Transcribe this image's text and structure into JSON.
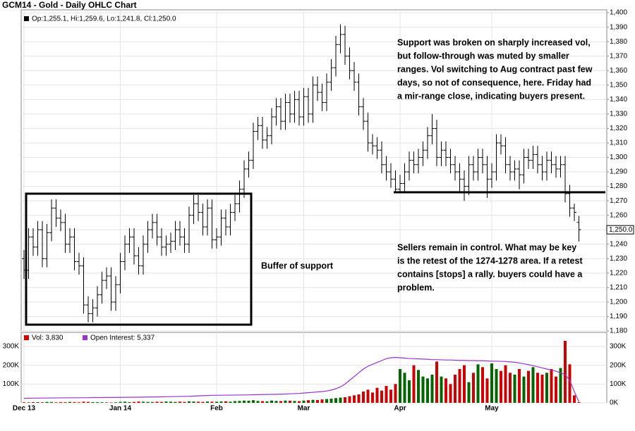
{
  "chart_data": {
    "type": "ohlc",
    "title": "GCM14 - Gold - Daily OHLC Chart",
    "price_legend": "Op:1,255.1, Hi:1,259.6, Lo:1,241.8, Cl:1,250.0",
    "volume_legend": "Vol: 3,830",
    "oi_legend": "Open Interest: 5,337",
    "last_price": {
      "value": 1250,
      "label": "1,250.0"
    },
    "annotations": [
      {
        "lines": [
          "Support was broken on sharply increased vol,",
          "but follow-through was muted by smaller",
          "ranges.  Vol switching to Aug contract past few",
          "days, so not of consequence, here.  Friday had",
          "a mir-range close, indicating buyers present."
        ]
      },
      {
        "lines": [
          "Buffer of support"
        ]
      },
      {
        "lines": [
          "Sellers remain in control.  What may be key",
          "is the retest of the 1274-1278 area.  If a retest",
          "contains [stops] a rally. buyers could have a",
          "problem."
        ]
      }
    ],
    "categories": [
      "Dec 13",
      null,
      null,
      null,
      null,
      null,
      null,
      null,
      null,
      null,
      null,
      null,
      null,
      null,
      null,
      null,
      null,
      null,
      null,
      null,
      null,
      "Jan 14",
      null,
      null,
      null,
      null,
      null,
      null,
      null,
      null,
      null,
      null,
      null,
      null,
      null,
      null,
      null,
      null,
      null,
      null,
      null,
      null,
      "Feb",
      null,
      null,
      null,
      null,
      null,
      null,
      null,
      null,
      null,
      null,
      null,
      null,
      null,
      null,
      null,
      null,
      null,
      null,
      "Mar",
      null,
      null,
      null,
      null,
      null,
      null,
      null,
      null,
      null,
      null,
      null,
      null,
      null,
      null,
      null,
      null,
      null,
      null,
      null,
      null,
      "Apr",
      null,
      null,
      null,
      null,
      null,
      null,
      null,
      null,
      null,
      null,
      null,
      null,
      null,
      null,
      null,
      null,
      null,
      null,
      null,
      "May",
      null,
      null,
      null,
      null,
      null,
      null,
      null,
      null,
      null,
      null,
      null,
      null,
      null,
      null,
      null,
      null,
      null,
      null,
      null
    ],
    "open": [
      1230,
      1222,
      1245,
      1238,
      1250,
      1230,
      1248,
      1265,
      1258,
      1255,
      1240,
      1245,
      1228,
      1225,
      1198,
      1192,
      1196,
      1205,
      1215,
      1218,
      1200,
      1212,
      1228,
      1240,
      1245,
      1232,
      1225,
      1240,
      1250,
      1255,
      1245,
      1238,
      1240,
      1242,
      1250,
      1245,
      1240,
      1260,
      1268,
      1262,
      1252,
      1265,
      1243,
      1245,
      1258,
      1252,
      1262,
      1268,
      1278,
      1292,
      1298,
      1318,
      1322,
      1312,
      1315,
      1328,
      1335,
      1325,
      1338,
      1330,
      1340,
      1328,
      1342,
      1330,
      1350,
      1345,
      1338,
      1352,
      1362,
      1378,
      1385,
      1370,
      1360,
      1352,
      1335,
      1325,
      1310,
      1308,
      1305,
      1295,
      1290,
      1285,
      1278,
      1282,
      1290,
      1298,
      1295,
      1300,
      1305,
      1315,
      1320,
      1300,
      1305,
      1300,
      1295,
      1290,
      1285,
      1280,
      1295,
      1290,
      1300,
      1295,
      1285,
      1290,
      1310,
      1308,
      1295,
      1290,
      1292,
      1288,
      1300,
      1298,
      1302,
      1295,
      1290,
      1298,
      1295,
      1292,
      1295,
      1275,
      1265,
      1255.1
    ],
    "high": [
      1236,
      1251,
      1251,
      1256,
      1256,
      1254,
      1271,
      1271,
      1264,
      1261,
      1251,
      1251,
      1234,
      1231,
      1204,
      1202,
      1211,
      1221,
      1224,
      1224,
      1218,
      1234,
      1246,
      1251,
      1251,
      1238,
      1246,
      1256,
      1261,
      1261,
      1251,
      1246,
      1248,
      1256,
      1256,
      1251,
      1266,
      1274,
      1274,
      1268,
      1271,
      1271,
      1251,
      1264,
      1264,
      1268,
      1274,
      1284,
      1298,
      1304,
      1324,
      1328,
      1328,
      1321,
      1334,
      1341,
      1341,
      1344,
      1344,
      1346,
      1346,
      1348,
      1348,
      1356,
      1356,
      1351,
      1358,
      1368,
      1384,
      1392,
      1391,
      1376,
      1366,
      1358,
      1341,
      1331,
      1316,
      1314,
      1311,
      1301,
      1296,
      1291,
      1288,
      1296,
      1304,
      1304,
      1306,
      1311,
      1321,
      1330,
      1326,
      1311,
      1311,
      1306,
      1301,
      1296,
      1291,
      1301,
      1301,
      1306,
      1306,
      1301,
      1296,
      1316,
      1316,
      1314,
      1301,
      1298,
      1298,
      1306,
      1306,
      1308,
      1308,
      1301,
      1304,
      1304,
      1301,
      1301,
      1301,
      1281,
      1268,
      1259.6
    ],
    "low": [
      1216,
      1216,
      1232,
      1232,
      1224,
      1224,
      1242,
      1252,
      1249,
      1234,
      1234,
      1222,
      1219,
      1192,
      1186,
      1186,
      1190,
      1199,
      1209,
      1194,
      1194,
      1206,
      1222,
      1234,
      1226,
      1219,
      1219,
      1234,
      1244,
      1239,
      1232,
      1232,
      1234,
      1236,
      1239,
      1234,
      1234,
      1254,
      1256,
      1246,
      1246,
      1237,
      1237,
      1239,
      1246,
      1246,
      1256,
      1262,
      1272,
      1286,
      1292,
      1312,
      1306,
      1306,
      1309,
      1322,
      1319,
      1319,
      1324,
      1324,
      1322,
      1322,
      1324,
      1324,
      1339,
      1332,
      1332,
      1346,
      1356,
      1372,
      1364,
      1354,
      1346,
      1329,
      1319,
      1304,
      1302,
      1299,
      1289,
      1284,
      1279,
      1276,
      1276,
      1276,
      1284,
      1289,
      1289,
      1294,
      1299,
      1309,
      1294,
      1294,
      1294,
      1289,
      1284,
      1276,
      1270,
      1274,
      1284,
      1284,
      1289,
      1272,
      1279,
      1284,
      1302,
      1289,
      1284,
      1284,
      1278,
      1282,
      1292,
      1292,
      1289,
      1284,
      1284,
      1289,
      1286,
      1286,
      1269,
      1259,
      1256,
      1241.8
    ],
    "close": [
      1222,
      1245,
      1238,
      1250,
      1230,
      1248,
      1265,
      1258,
      1255,
      1240,
      1245,
      1228,
      1225,
      1198,
      1192,
      1196,
      1205,
      1215,
      1218,
      1200,
      1212,
      1228,
      1240,
      1245,
      1232,
      1225,
      1240,
      1250,
      1255,
      1245,
      1238,
      1240,
      1242,
      1250,
      1245,
      1240,
      1260,
      1268,
      1262,
      1252,
      1265,
      1243,
      1245,
      1258,
      1252,
      1262,
      1268,
      1278,
      1292,
      1298,
      1318,
      1322,
      1312,
      1315,
      1328,
      1335,
      1325,
      1338,
      1330,
      1340,
      1328,
      1342,
      1330,
      1350,
      1345,
      1338,
      1352,
      1362,
      1378,
      1385,
      1370,
      1360,
      1352,
      1335,
      1325,
      1310,
      1308,
      1305,
      1295,
      1290,
      1285,
      1278,
      1282,
      1290,
      1298,
      1295,
      1300,
      1305,
      1315,
      1320,
      1300,
      1305,
      1300,
      1295,
      1290,
      1285,
      1280,
      1295,
      1290,
      1300,
      1295,
      1285,
      1290,
      1310,
      1308,
      1295,
      1290,
      1292,
      1288,
      1300,
      1298,
      1302,
      1295,
      1290,
      1298,
      1295,
      1292,
      1295,
      1275,
      1265,
      1262,
      1250
    ],
    "volume": [
      3000,
      2500,
      3500,
      4000,
      3000,
      5000,
      4500,
      3000,
      4000,
      3500,
      5000,
      4000,
      3000,
      6000,
      5000,
      4000,
      3500,
      3000,
      2500,
      2000,
      3000,
      5000,
      6000,
      4000,
      5000,
      7000,
      6000,
      5000,
      4500,
      6000,
      5000,
      7000,
      6000,
      5000,
      6500,
      5000,
      8000,
      7000,
      6000,
      5000,
      7000,
      6000,
      6000,
      7000,
      8000,
      6000,
      9000,
      10000,
      12000,
      11000,
      14000,
      10000,
      9000,
      8000,
      12000,
      10000,
      9000,
      12000,
      11000,
      10000,
      9000,
      12000,
      14000,
      16000,
      15000,
      18000,
      20000,
      22000,
      25000,
      28000,
      30000,
      35000,
      40000,
      45000,
      60000,
      70000,
      55000,
      80000,
      65000,
      90000,
      70000,
      100000,
      180000,
      160000,
      120000,
      200000,
      175000,
      140000,
      130000,
      150000,
      220000,
      140000,
      130000,
      100000,
      150000,
      180000,
      200000,
      110000,
      160000,
      205000,
      190000,
      130000,
      210000,
      180000,
      170000,
      200000,
      160000,
      150000,
      180000,
      140000,
      170000,
      190000,
      160000,
      150000,
      160000,
      180000,
      140000,
      185000,
      330000,
      205000,
      40000,
      3830
    ],
    "open_interest": [
      24000,
      24500,
      25000,
      25000,
      25500,
      25500,
      26000,
      26000,
      26500,
      26500,
      27000,
      27000,
      27000,
      27500,
      27500,
      28000,
      28000,
      28000,
      28500,
      28500,
      29000,
      29000,
      29500,
      29500,
      30000,
      30000,
      30500,
      31000,
      31000,
      31500,
      32000,
      32500,
      33000,
      33500,
      34000,
      34500,
      35000,
      36000,
      37000,
      38000,
      39000,
      40000,
      40000,
      40500,
      41000,
      41000,
      41500,
      42000,
      42000,
      42500,
      43000,
      43500,
      44000,
      44500,
      45000,
      45500,
      46000,
      47000,
      48000,
      49000,
      50000,
      52000,
      54000,
      56000,
      58000,
      60000,
      63000,
      68000,
      75000,
      85000,
      100000,
      120000,
      140000,
      160000,
      180000,
      195000,
      205000,
      215000,
      225000,
      235000,
      240000,
      242000,
      240000,
      238000,
      236000,
      235000,
      234000,
      233000,
      232000,
      230000,
      230000,
      229000,
      228000,
      228000,
      227000,
      226000,
      226000,
      225000,
      225000,
      224000,
      224000,
      223000,
      222000,
      222000,
      221000,
      220000,
      218000,
      216000,
      212000,
      208000,
      203000,
      198000,
      192000,
      186000,
      180000,
      174000,
      168000,
      160000,
      150000,
      120000,
      60000,
      5337
    ],
    "ylim": [
      1180,
      1402
    ],
    "yticks": [
      {
        "value": 1180,
        "label": "1,180"
      },
      {
        "value": 1190,
        "label": "1,190"
      },
      {
        "value": 1200,
        "label": "1,200"
      },
      {
        "value": 1210,
        "label": "1,210"
      },
      {
        "value": 1220,
        "label": "1,220"
      },
      {
        "value": 1230,
        "label": "1,230"
      },
      {
        "value": 1240,
        "label": "1,240"
      },
      {
        "value": 1250,
        "label": "1,250"
      },
      {
        "value": 1260,
        "label": "1,260"
      },
      {
        "value": 1270,
        "label": "1,270"
      },
      {
        "value": 1280,
        "label": "1,280"
      },
      {
        "value": 1290,
        "label": "1,290"
      },
      {
        "value": 1300,
        "label": "1,300"
      },
      {
        "value": 1310,
        "label": "1,310"
      },
      {
        "value": 1320,
        "label": "1,320"
      },
      {
        "value": 1330,
        "label": "1,330"
      },
      {
        "value": 1340,
        "label": "1,340"
      },
      {
        "value": 1350,
        "label": "1,350"
      },
      {
        "value": 1360,
        "label": "1,360"
      },
      {
        "value": 1370,
        "label": "1,370"
      },
      {
        "value": 1380,
        "label": "1,380"
      },
      {
        "value": 1390,
        "label": "1,390"
      },
      {
        "value": 1400,
        "label": "1,400"
      }
    ],
    "y2lim": [
      0,
      375000
    ],
    "y2ticks": [
      {
        "value": 0,
        "label": "0K"
      },
      {
        "value": 100000,
        "label": "100K"
      },
      {
        "value": 200000,
        "label": "200K"
      },
      {
        "value": 300000,
        "label": "300K"
      }
    ],
    "grid": true,
    "bar_color": "#000000",
    "up_color": "#006600",
    "down_color": "#cc0000",
    "oi_color": "#9933cc"
  }
}
